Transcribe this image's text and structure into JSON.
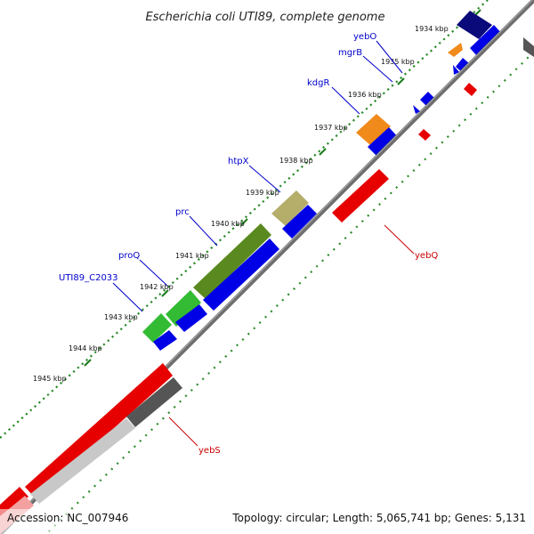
{
  "title": "Escherichia coli UTI89, complete genome",
  "footer": {
    "accession": "Accession: NC_007946",
    "summary": "Topology: circular; Length: 5,065,741 bp; Genes: 5,131"
  },
  "ticks": [
    {
      "label": "1934 kbp"
    },
    {
      "label": "1935 kbp"
    },
    {
      "label": "1936 kbp"
    },
    {
      "label": "1937 kbp"
    },
    {
      "label": "1938 kbp"
    },
    {
      "label": "1939 kbp"
    },
    {
      "label": "1940 kbp"
    },
    {
      "label": "1941 kbp"
    },
    {
      "label": "1942 kbp"
    },
    {
      "label": "1943 kbp"
    },
    {
      "label": "1944 kbp"
    },
    {
      "label": "1945 kbp"
    }
  ],
  "gene_labels": [
    {
      "name": "yebO",
      "strand": "forward"
    },
    {
      "name": "mgrB",
      "strand": "forward"
    },
    {
      "name": "kdgR",
      "strand": "forward"
    },
    {
      "name": "htpX",
      "strand": "forward"
    },
    {
      "name": "prc",
      "strand": "forward"
    },
    {
      "name": "proQ",
      "strand": "forward"
    },
    {
      "name": "UTI89_C2033",
      "strand": "forward"
    },
    {
      "name": "yebQ",
      "strand": "reverse"
    },
    {
      "name": "yebS",
      "strand": "reverse"
    }
  ],
  "colors": {
    "backbone": "#6e6e6e",
    "tick_dots": "#2a8a2a",
    "cds_forward": "#0000e6",
    "cds_reverse": "#e60000",
    "label_forward": "#0000cc",
    "label_reverse": "#cc0000",
    "cog_green": "#33bb33",
    "cog_olive": "#5a8a1f",
    "cog_khaki": "#b5ad6a",
    "cog_orange": "#f08a1a",
    "cog_navy": "#0a0a7a",
    "cog_gray": "#555555",
    "cog_lightgray": "#c8c8c8",
    "cog_pink": "#f2a0a0"
  }
}
